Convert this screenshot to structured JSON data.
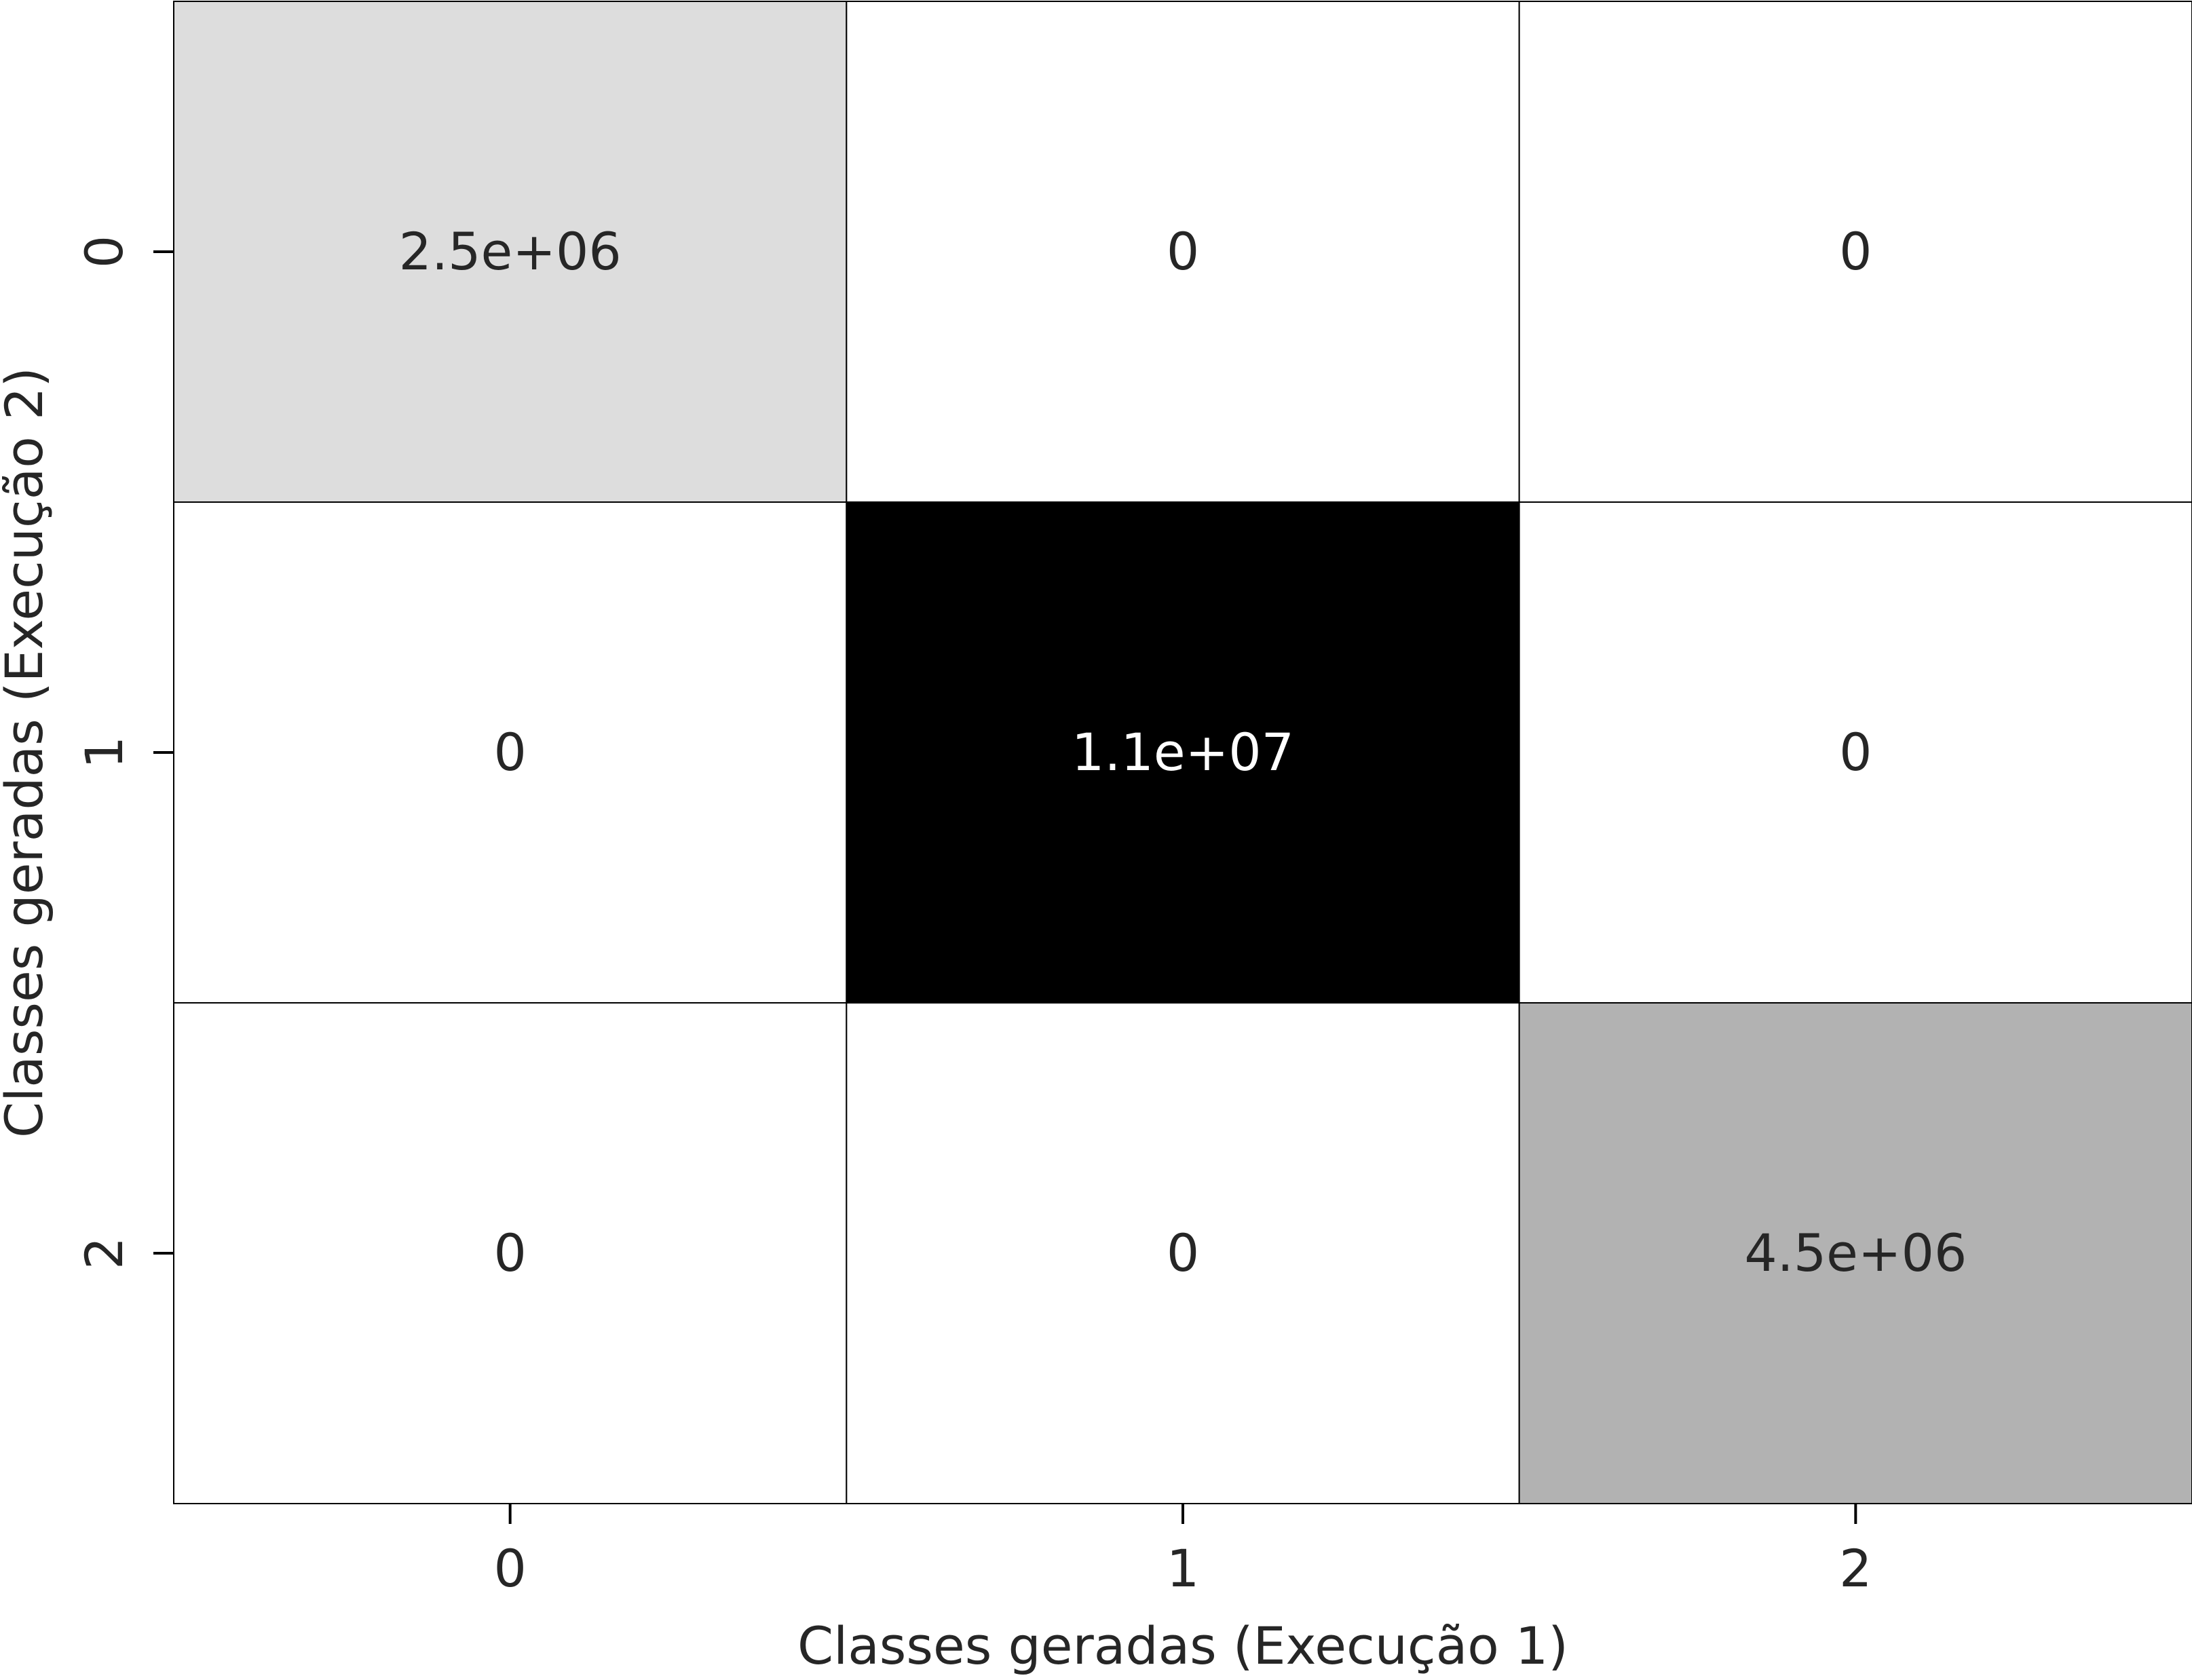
{
  "chart_data": {
    "type": "heatmap",
    "title": "",
    "xlabel": "Classes geradas (Execução 1)",
    "ylabel": "Classes geradas (Execução 2)",
    "x_categories": [
      "0",
      "1",
      "2"
    ],
    "y_categories": [
      "0",
      "1",
      "2"
    ],
    "values": [
      [
        2500000,
        0,
        0
      ],
      [
        0,
        11000000,
        0
      ],
      [
        0,
        0,
        4500000
      ]
    ],
    "annotations": [
      [
        "2.5e+06",
        "0",
        "0"
      ],
      [
        "0",
        "1.1e+07",
        "0"
      ],
      [
        "0",
        "0",
        "4.5e+06"
      ]
    ],
    "colormap": "Greys",
    "colorbar": false,
    "grid": false,
    "cell_border_color": "#000000",
    "text_color_dark": "#262626",
    "text_color_light": "#ffffff"
  }
}
